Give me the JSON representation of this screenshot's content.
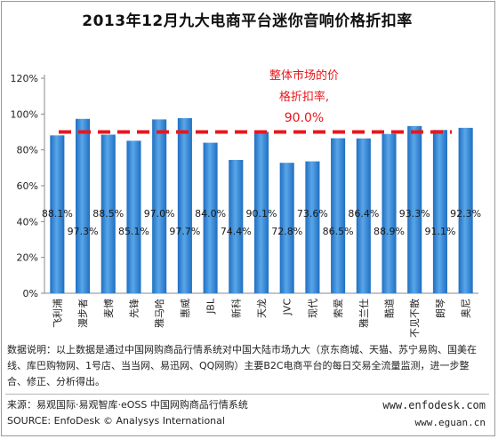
{
  "title": "2013年12月九大电商平台迷你音响价格折扣率",
  "chart_data": {
    "type": "bar",
    "categories": [
      "飞利浦",
      "漫步者",
      "麦博",
      "先锋",
      "雅马哈",
      "惠威",
      "JBL",
      "新科",
      "天龙",
      "JVC",
      "现代",
      "索爱",
      "雅兰仕",
      "酷道",
      "不见不散",
      "朗琴",
      "奥尼"
    ],
    "values": [
      88.1,
      97.3,
      88.5,
      85.1,
      97.0,
      97.7,
      84.0,
      74.4,
      90.1,
      72.8,
      73.6,
      86.5,
      86.4,
      88.9,
      93.3,
      91.1,
      92.3
    ],
    "value_labels": [
      "88.1%",
      "97.3%",
      "88.5%",
      "85.1%",
      "97.0%",
      "97.7%",
      "84.0%",
      "74.4%",
      "90.1%",
      "72.8%",
      "73.6%",
      "86.5%",
      "86.4%",
      "88.9%",
      "93.3%",
      "91.1%",
      "92.3%"
    ],
    "ylim": [
      0,
      120
    ],
    "yticks": [
      0,
      20,
      40,
      60,
      80,
      100,
      120
    ],
    "ytick_labels": [
      "0%",
      "20%",
      "40%",
      "60%",
      "80%",
      "100%",
      "120%"
    ],
    "grid": false,
    "reference_line": {
      "value": 90.0,
      "label_lines": [
        "整体市场的价",
        "格折扣率,",
        "90.0%"
      ],
      "color": "#e8161c"
    },
    "bar_color": "#1f6fc2",
    "bar_color_light": "#5aa6e8"
  },
  "note": "数据说明：以上数据是通过中国网购商品行情系统对中国大陆市场九大（京东商城、天猫、苏宁易购、国美在线、库巴购物网、1号店、当当网、易迅网、QQ网购）主要B2C电商平台的每日交易全流量监测，进一步整合、修正、分析得出。",
  "source_cn": "来源：易观国际·易观智库·eOSS 中国网购商品行情系统",
  "source_en": "SOURCE: EnfoDesk © Analysys International",
  "url_1": "www.enfodesk.com",
  "url_2": "www.eguan.cn"
}
